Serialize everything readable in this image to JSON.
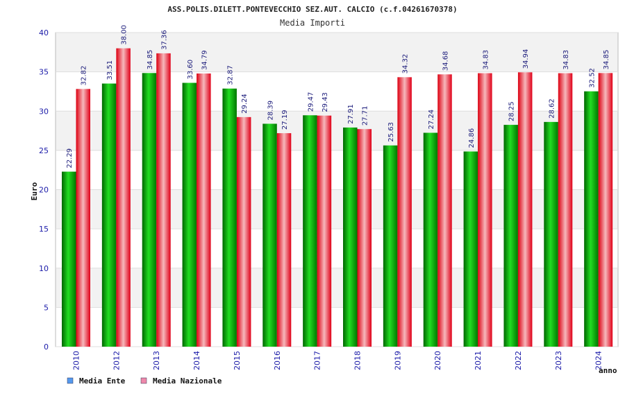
{
  "chart_data": {
    "type": "bar",
    "title": "ASS.POLIS.DILETT.PONTEVECCHIO SEZ.AUT. CALCIO (c.f.04261670378)",
    "subtitle": "Media Importi",
    "xlabel": "anno",
    "ylabel": "Euro",
    "ylim": [
      0,
      40
    ],
    "yticks": [
      0,
      5,
      10,
      15,
      20,
      25,
      30,
      35,
      40
    ],
    "categories": [
      "2010",
      "2012",
      "2013",
      "2014",
      "2015",
      "2016",
      "2017",
      "2018",
      "2019",
      "2020",
      "2021",
      "2022",
      "2023",
      "2024"
    ],
    "series": [
      {
        "name": "Media Ente",
        "values": [
          22.29,
          33.51,
          34.85,
          33.6,
          32.87,
          28.39,
          29.47,
          27.91,
          25.63,
          27.24,
          24.86,
          28.25,
          28.62,
          32.52
        ],
        "labels": [
          "22.29",
          "33.51",
          "34.85",
          "33.60",
          "32.87",
          "28.39",
          "29.47",
          "27.91",
          "25.63",
          "27.24",
          "24.86",
          "28.25",
          "28.62",
          "32.52"
        ],
        "color": "#00b000",
        "legend_color": "#5599ee"
      },
      {
        "name": "Media Nazionale",
        "values": [
          32.82,
          38.0,
          37.36,
          34.79,
          29.24,
          27.19,
          29.43,
          27.71,
          34.32,
          34.68,
          34.83,
          34.94,
          34.83,
          34.85
        ],
        "labels": [
          "32.82",
          "38.00",
          "37.36",
          "34.79",
          "29.24",
          "27.19",
          "29.43",
          "27.71",
          "34.32",
          "34.68",
          "34.83",
          "34.94",
          "34.83",
          "34.85"
        ],
        "color": "#ee1122",
        "legend_color": "#ee88aa"
      }
    ],
    "grid": true,
    "legend_position": "bottom-left"
  }
}
